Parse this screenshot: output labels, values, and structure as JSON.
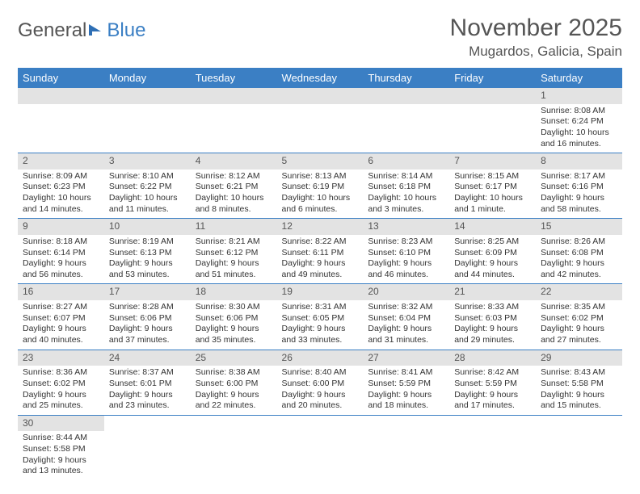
{
  "logo": {
    "text1": "General",
    "text2": "Blue"
  },
  "title": "November 2025",
  "location": "Mugardos, Galicia, Spain",
  "header_bg": "#3b7fc4",
  "daynum_bg": "#e3e3e3",
  "weekdays": [
    "Sunday",
    "Monday",
    "Tuesday",
    "Wednesday",
    "Thursday",
    "Friday",
    "Saturday"
  ],
  "weeks": [
    [
      null,
      null,
      null,
      null,
      null,
      null,
      {
        "n": "1",
        "sr": "Sunrise: 8:08 AM",
        "ss": "Sunset: 6:24 PM",
        "dl": "Daylight: 10 hours and 16 minutes."
      }
    ],
    [
      {
        "n": "2",
        "sr": "Sunrise: 8:09 AM",
        "ss": "Sunset: 6:23 PM",
        "dl": "Daylight: 10 hours and 14 minutes."
      },
      {
        "n": "3",
        "sr": "Sunrise: 8:10 AM",
        "ss": "Sunset: 6:22 PM",
        "dl": "Daylight: 10 hours and 11 minutes."
      },
      {
        "n": "4",
        "sr": "Sunrise: 8:12 AM",
        "ss": "Sunset: 6:21 PM",
        "dl": "Daylight: 10 hours and 8 minutes."
      },
      {
        "n": "5",
        "sr": "Sunrise: 8:13 AM",
        "ss": "Sunset: 6:19 PM",
        "dl": "Daylight: 10 hours and 6 minutes."
      },
      {
        "n": "6",
        "sr": "Sunrise: 8:14 AM",
        "ss": "Sunset: 6:18 PM",
        "dl": "Daylight: 10 hours and 3 minutes."
      },
      {
        "n": "7",
        "sr": "Sunrise: 8:15 AM",
        "ss": "Sunset: 6:17 PM",
        "dl": "Daylight: 10 hours and 1 minute."
      },
      {
        "n": "8",
        "sr": "Sunrise: 8:17 AM",
        "ss": "Sunset: 6:16 PM",
        "dl": "Daylight: 9 hours and 58 minutes."
      }
    ],
    [
      {
        "n": "9",
        "sr": "Sunrise: 8:18 AM",
        "ss": "Sunset: 6:14 PM",
        "dl": "Daylight: 9 hours and 56 minutes."
      },
      {
        "n": "10",
        "sr": "Sunrise: 8:19 AM",
        "ss": "Sunset: 6:13 PM",
        "dl": "Daylight: 9 hours and 53 minutes."
      },
      {
        "n": "11",
        "sr": "Sunrise: 8:21 AM",
        "ss": "Sunset: 6:12 PM",
        "dl": "Daylight: 9 hours and 51 minutes."
      },
      {
        "n": "12",
        "sr": "Sunrise: 8:22 AM",
        "ss": "Sunset: 6:11 PM",
        "dl": "Daylight: 9 hours and 49 minutes."
      },
      {
        "n": "13",
        "sr": "Sunrise: 8:23 AM",
        "ss": "Sunset: 6:10 PM",
        "dl": "Daylight: 9 hours and 46 minutes."
      },
      {
        "n": "14",
        "sr": "Sunrise: 8:25 AM",
        "ss": "Sunset: 6:09 PM",
        "dl": "Daylight: 9 hours and 44 minutes."
      },
      {
        "n": "15",
        "sr": "Sunrise: 8:26 AM",
        "ss": "Sunset: 6:08 PM",
        "dl": "Daylight: 9 hours and 42 minutes."
      }
    ],
    [
      {
        "n": "16",
        "sr": "Sunrise: 8:27 AM",
        "ss": "Sunset: 6:07 PM",
        "dl": "Daylight: 9 hours and 40 minutes."
      },
      {
        "n": "17",
        "sr": "Sunrise: 8:28 AM",
        "ss": "Sunset: 6:06 PM",
        "dl": "Daylight: 9 hours and 37 minutes."
      },
      {
        "n": "18",
        "sr": "Sunrise: 8:30 AM",
        "ss": "Sunset: 6:06 PM",
        "dl": "Daylight: 9 hours and 35 minutes."
      },
      {
        "n": "19",
        "sr": "Sunrise: 8:31 AM",
        "ss": "Sunset: 6:05 PM",
        "dl": "Daylight: 9 hours and 33 minutes."
      },
      {
        "n": "20",
        "sr": "Sunrise: 8:32 AM",
        "ss": "Sunset: 6:04 PM",
        "dl": "Daylight: 9 hours and 31 minutes."
      },
      {
        "n": "21",
        "sr": "Sunrise: 8:33 AM",
        "ss": "Sunset: 6:03 PM",
        "dl": "Daylight: 9 hours and 29 minutes."
      },
      {
        "n": "22",
        "sr": "Sunrise: 8:35 AM",
        "ss": "Sunset: 6:02 PM",
        "dl": "Daylight: 9 hours and 27 minutes."
      }
    ],
    [
      {
        "n": "23",
        "sr": "Sunrise: 8:36 AM",
        "ss": "Sunset: 6:02 PM",
        "dl": "Daylight: 9 hours and 25 minutes."
      },
      {
        "n": "24",
        "sr": "Sunrise: 8:37 AM",
        "ss": "Sunset: 6:01 PM",
        "dl": "Daylight: 9 hours and 23 minutes."
      },
      {
        "n": "25",
        "sr": "Sunrise: 8:38 AM",
        "ss": "Sunset: 6:00 PM",
        "dl": "Daylight: 9 hours and 22 minutes."
      },
      {
        "n": "26",
        "sr": "Sunrise: 8:40 AM",
        "ss": "Sunset: 6:00 PM",
        "dl": "Daylight: 9 hours and 20 minutes."
      },
      {
        "n": "27",
        "sr": "Sunrise: 8:41 AM",
        "ss": "Sunset: 5:59 PM",
        "dl": "Daylight: 9 hours and 18 minutes."
      },
      {
        "n": "28",
        "sr": "Sunrise: 8:42 AM",
        "ss": "Sunset: 5:59 PM",
        "dl": "Daylight: 9 hours and 17 minutes."
      },
      {
        "n": "29",
        "sr": "Sunrise: 8:43 AM",
        "ss": "Sunset: 5:58 PM",
        "dl": "Daylight: 9 hours and 15 minutes."
      }
    ],
    [
      {
        "n": "30",
        "sr": "Sunrise: 8:44 AM",
        "ss": "Sunset: 5:58 PM",
        "dl": "Daylight: 9 hours and 13 minutes."
      },
      null,
      null,
      null,
      null,
      null,
      null
    ]
  ]
}
